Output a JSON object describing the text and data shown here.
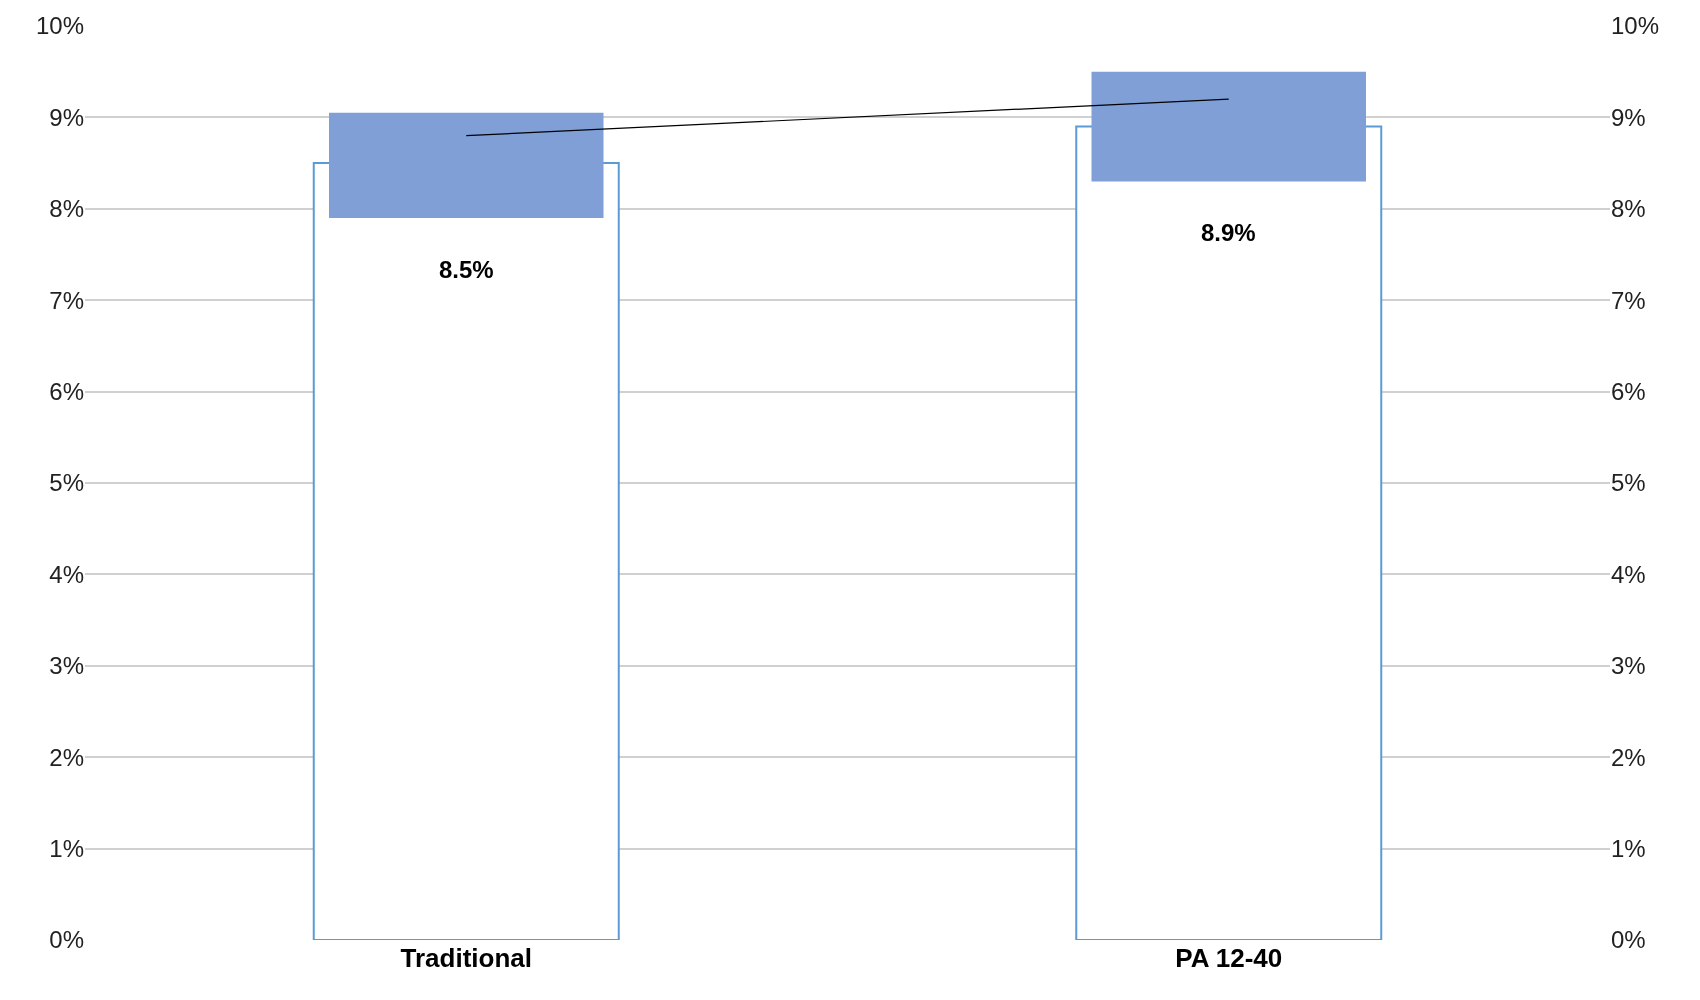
{
  "chart_data": {
    "type": "bar",
    "categories": [
      "Traditional",
      "PA 12-40"
    ],
    "series": [
      {
        "color": "#5b9bd5",
        "values": [
          8.5,
          8.9
        ],
        "value_labels": [
          "8.5%",
          "8.9%"
        ]
      },
      {
        "color": "#7f9fd6",
        "base": [
          7.9,
          8.3
        ],
        "values": [
          1.15,
          1.2
        ]
      },
      {
        "type": "line",
        "axis": "y2",
        "color": "#000000",
        "values": [
          8.8,
          9.2
        ]
      }
    ],
    "ylim": [
      0,
      10
    ],
    "yticks": [
      {
        "value": 0,
        "label": "0%"
      },
      {
        "value": 1,
        "label": "1%"
      },
      {
        "value": 2,
        "label": "2%"
      },
      {
        "value": 3,
        "label": "3%"
      },
      {
        "value": 4,
        "label": "4%"
      },
      {
        "value": 5,
        "label": "5%"
      },
      {
        "value": 6,
        "label": "6%"
      },
      {
        "value": 7,
        "label": "7%"
      },
      {
        "value": 8,
        "label": "8%"
      },
      {
        "value": 9,
        "label": "9%"
      },
      {
        "value": 10,
        "label": "10%"
      }
    ],
    "y2lim": [
      0,
      10
    ],
    "y2ticks": [
      {
        "value": 0,
        "label": "0%"
      },
      {
        "value": 1,
        "label": "1%"
      },
      {
        "value": 2,
        "label": "2%"
      },
      {
        "value": 3,
        "label": "3%"
      },
      {
        "value": 4,
        "label": "4%"
      },
      {
        "value": 5,
        "label": "5%"
      },
      {
        "value": 6,
        "label": "6%"
      },
      {
        "value": 7,
        "label": "7%"
      },
      {
        "value": 8,
        "label": "8%"
      },
      {
        "value": 9,
        "label": "9%"
      },
      {
        "value": 10,
        "label": "10%"
      }
    ],
    "grid": "y"
  }
}
